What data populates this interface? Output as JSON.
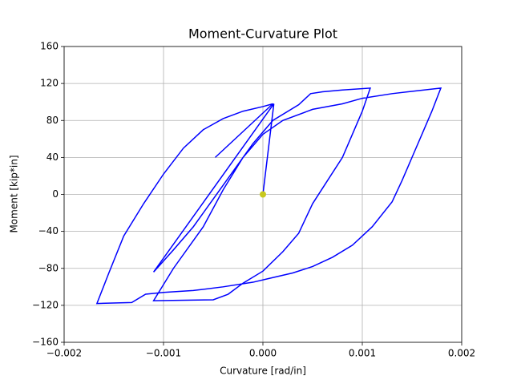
{
  "chart_data": {
    "type": "line",
    "title": "Moment-Curvature Plot",
    "xlabel": "Curvature [rad/in]",
    "ylabel": "Moment [kip*in]",
    "xlim": [
      -0.002,
      0.002
    ],
    "xticks": [
      {
        "value": -0.002,
        "label": "−0.002"
      },
      {
        "value": -0.001,
        "label": "−0.001"
      },
      {
        "value": 0,
        "label": "0.000"
      },
      {
        "value": 0.001,
        "label": "0.001"
      },
      {
        "value": 0.002,
        "label": "0.002"
      }
    ],
    "ylim": [
      -160,
      160
    ],
    "yticks": [
      {
        "value": -160,
        "label": "−160"
      },
      {
        "value": -120,
        "label": "−120"
      },
      {
        "value": -80,
        "label": "−80"
      },
      {
        "value": -40,
        "label": "−40"
      },
      0,
      40,
      80,
      120,
      160
    ],
    "grid": true,
    "series": [
      {
        "type": "line",
        "color": "#0000ff",
        "x": [
          0,
          0.00011,
          -0.0011,
          -0.0009,
          -0.0007,
          -0.0005,
          -0.0003,
          -0.0001,
          0.0001,
          0.00036,
          0.00048,
          0.0006,
          0.0008,
          0.00108,
          0.001,
          0.0009,
          0.0008,
          0.00065,
          0.0005,
          0.00036,
          0.0002,
          0,
          -0.0002,
          -0.00035,
          -0.0005,
          -0.0011,
          -0.0009,
          -0.0006,
          -0.0004,
          -0.0002,
          0,
          0.0002,
          0.0005,
          0.0008,
          0.001,
          0.0013,
          0.00179,
          0.0017,
          0.0016,
          0.0015,
          0.0014,
          0.0013,
          0.0011,
          0.0009,
          0.0007,
          0.0005,
          0.0003,
          0.0001,
          -0.0001,
          -0.0004,
          -0.0007,
          -0.001,
          -0.00118,
          -0.00132,
          -0.00167,
          -0.00155,
          -0.0014,
          -0.0012,
          -0.001,
          -0.0008,
          -0.0006,
          -0.0004,
          -0.0002,
          0,
          0.0001,
          -0.00048
        ],
        "values": [
          0,
          98,
          -84,
          -60,
          -35,
          -5,
          25,
          55,
          80,
          97,
          109,
          111,
          113,
          115,
          90,
          65,
          40,
          15,
          -10,
          -42,
          -62,
          -83,
          -96,
          -108,
          -114,
          -115,
          -80,
          -35,
          5,
          40,
          65,
          80,
          92,
          98,
          104,
          109,
          115,
          90,
          65,
          40,
          15,
          -8,
          -35,
          -55,
          -68,
          -78,
          -85,
          -90,
          -95,
          -100,
          -104,
          -106,
          -108,
          -117,
          -118,
          -85,
          -45,
          -10,
          22,
          50,
          70,
          82,
          90,
          95,
          98,
          40
        ]
      },
      {
        "type": "scatter",
        "color": "#c8c81e",
        "x": [
          0
        ],
        "values": [
          0
        ]
      }
    ]
  }
}
